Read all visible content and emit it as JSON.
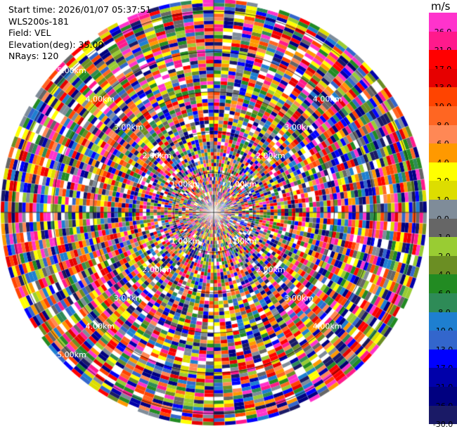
{
  "header": {
    "start_time": "Start time: 2026/01/07 05:37:51",
    "station": "WLS200s-181",
    "field": "Field: VEL",
    "elevation": "Elevation(deg): 35.00",
    "nrays": "NRays: 120"
  },
  "colorbar": {
    "unit": "m/s",
    "labels": [
      "26.0",
      "21.0",
      "17.0",
      "13.0",
      "10.0",
      "8.0",
      "6.0",
      "4.0",
      "2.0",
      "1.0",
      "0.0",
      "-1.0",
      "-2.0",
      "-4.0",
      "-6.0",
      "-8.0",
      "-10.0",
      "-13.0",
      "-17.0",
      "-21.0",
      "-26.0",
      "-30.0"
    ],
    "colors": [
      "#ff33cc",
      "#ff1a8c",
      "#ff0000",
      "#e60000",
      "#ff4400",
      "#ff6622",
      "#ff8855",
      "#ff9900",
      "#ffff00",
      "#dddd00",
      "#7f8c99",
      "#666666",
      "#99cc33",
      "#6b8e23",
      "#228b22",
      "#2e8b57",
      "#1e7fd0",
      "#3366cc",
      "#0000ff",
      "#0000aa",
      "#000080",
      "#1a1a66"
    ]
  },
  "chart_data": {
    "type": "ppi",
    "field": "VEL",
    "units": "m/s",
    "nrays": 120,
    "elevation_deg": 35.0,
    "max_range_km": 5.3,
    "range_rings_km": [
      1,
      2,
      3,
      4,
      5
    ],
    "ring_labels": [
      {
        "quadrant": "NW",
        "text": "1.00km"
      },
      {
        "quadrant": "NE",
        "text": "1.00km"
      },
      {
        "quadrant": "SW",
        "text": "1.00km"
      },
      {
        "quadrant": "SE",
        "text": "1.00km"
      },
      {
        "quadrant": "NW",
        "text": "2.00km"
      },
      {
        "quadrant": "NE",
        "text": "2.00km"
      },
      {
        "quadrant": "SW",
        "text": "2.00km"
      },
      {
        "quadrant": "SE",
        "text": "2.00km"
      },
      {
        "quadrant": "NW",
        "text": "3.00km"
      },
      {
        "quadrant": "NE",
        "text": "3.00km"
      },
      {
        "quadrant": "SW",
        "text": "3.00km"
      },
      {
        "quadrant": "SE",
        "text": "3.00km"
      },
      {
        "quadrant": "NW",
        "text": "4.00km"
      },
      {
        "quadrant": "NE",
        "text": "4.00km"
      },
      {
        "quadrant": "SW",
        "text": "4.00km"
      },
      {
        "quadrant": "SE",
        "text": "4.00km"
      },
      {
        "quadrant": "NW",
        "text": "5.00km"
      },
      {
        "quadrant": "SW",
        "text": "5.00km"
      }
    ]
  }
}
